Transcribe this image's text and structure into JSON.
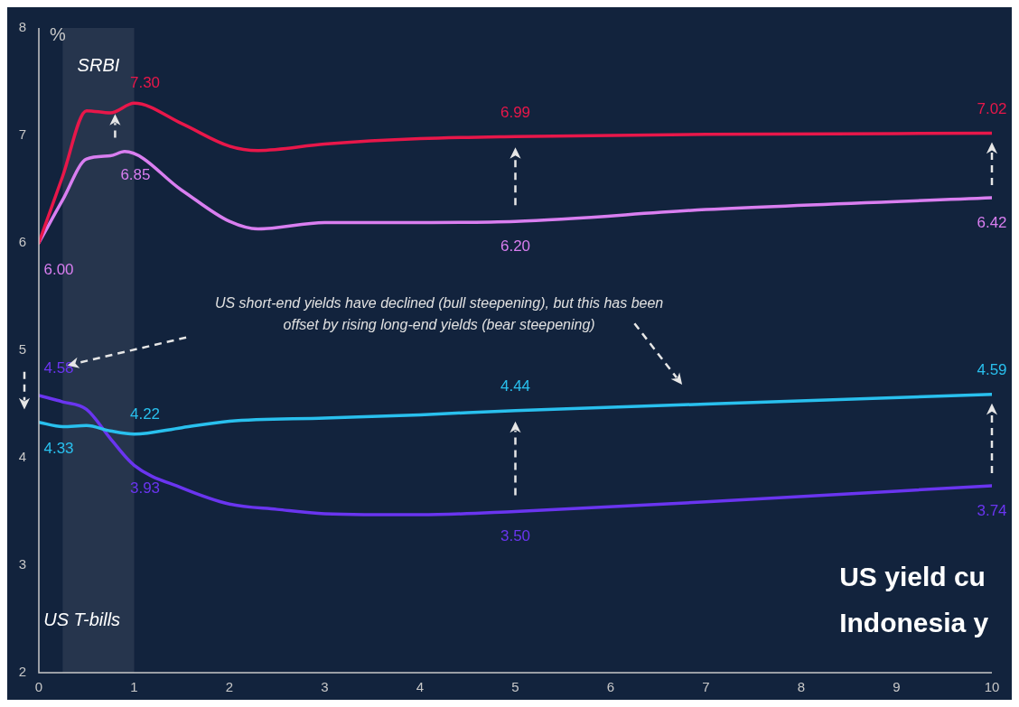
{
  "chart_data": {
    "type": "line",
    "ylabel": "%",
    "xlim": [
      0,
      10
    ],
    "xticks": [
      0,
      1,
      2,
      3,
      4,
      5,
      6,
      7,
      8,
      9,
      10
    ],
    "ylim": [
      2,
      8
    ],
    "yticks": [
      2,
      3,
      4,
      5,
      6,
      7,
      8
    ],
    "grid": false,
    "legend": false,
    "marker": "none",
    "line_style": "solid",
    "series": [
      {
        "color": "#e8174a",
        "x": [
          0,
          0.25,
          0.5,
          0.75,
          1,
          1.5,
          2,
          2.3,
          3,
          4,
          5,
          7,
          10
        ],
        "values": [
          6.0,
          6.62,
          7.23,
          7.21,
          7.3,
          7.11,
          6.9,
          6.86,
          6.92,
          6.97,
          6.99,
          7.01,
          7.02
        ],
        "value_labels": [
          null,
          null,
          null,
          null,
          "7.30",
          null,
          null,
          null,
          null,
          null,
          "6.99",
          null,
          "7.02"
        ]
      },
      {
        "color": "#d97ef0",
        "x": [
          0,
          0.25,
          0.5,
          0.75,
          0.9,
          1.5,
          2,
          2.3,
          3,
          4,
          5,
          7,
          10
        ],
        "values": [
          6.0,
          6.4,
          6.78,
          6.81,
          6.85,
          6.49,
          6.2,
          6.13,
          6.19,
          6.19,
          6.2,
          6.31,
          6.42
        ],
        "value_labels": [
          "6.00",
          null,
          null,
          null,
          "6.85",
          null,
          null,
          null,
          null,
          null,
          "6.20",
          null,
          "6.42"
        ]
      },
      {
        "color": "#29c0ee",
        "x": [
          0,
          0.25,
          0.5,
          0.75,
          1,
          1.5,
          2,
          3,
          4,
          5,
          7,
          10
        ],
        "values": [
          4.33,
          4.29,
          4.3,
          4.25,
          4.22,
          4.28,
          4.34,
          4.37,
          4.4,
          4.44,
          4.5,
          4.59
        ],
        "value_labels": [
          "4.33",
          null,
          null,
          null,
          "4.22",
          null,
          null,
          null,
          null,
          "4.44",
          null,
          "4.59"
        ]
      },
      {
        "color": "#6a35f0",
        "x": [
          0,
          0.25,
          0.5,
          0.75,
          1,
          1.5,
          2,
          2.5,
          3,
          4,
          5,
          7,
          10
        ],
        "values": [
          4.58,
          4.52,
          4.45,
          4.18,
          3.93,
          3.72,
          3.57,
          3.52,
          3.48,
          3.47,
          3.5,
          3.59,
          3.74
        ],
        "value_labels": [
          "4.58",
          null,
          null,
          null,
          "3.93",
          null,
          null,
          null,
          null,
          null,
          "3.50",
          null,
          "3.74"
        ]
      }
    ],
    "bands": [
      {
        "axis": "x",
        "from": 0.25,
        "to": 1,
        "label": "SRBI",
        "color": "#26354d"
      }
    ],
    "annotations": [
      "US T-bills",
      "US short-end yields have declined (bull steepening), but this has been offset by rising long-end yields (bear steepening)",
      "US yield cu",
      "Indonesia y"
    ]
  }
}
